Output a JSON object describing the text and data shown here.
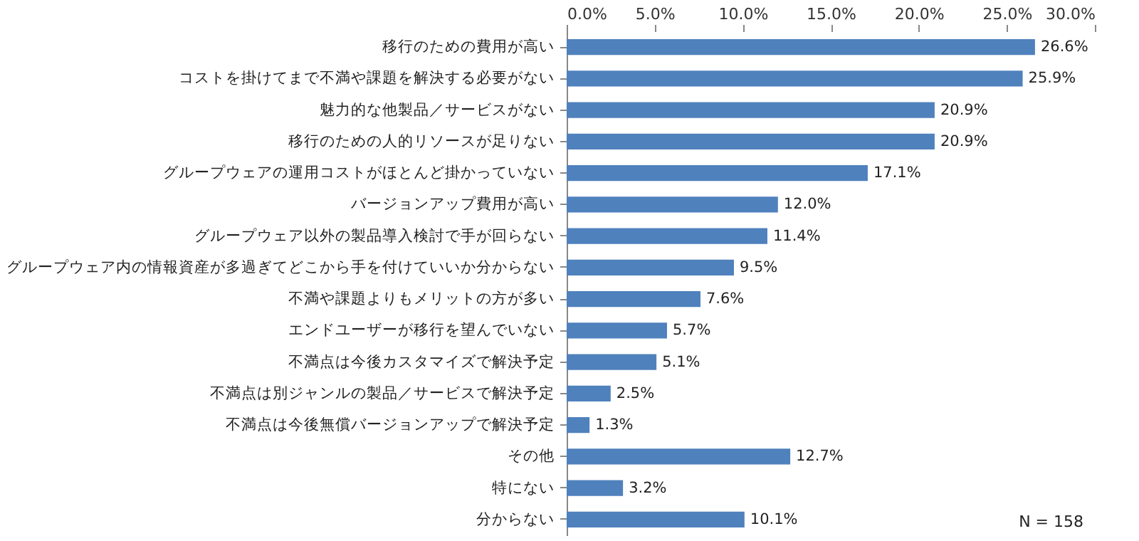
{
  "chart_data": {
    "type": "bar",
    "orientation": "horizontal",
    "categories": [
      "移行のための費用が高い",
      "コストを掛けてまで不満や課題を解決する必要がない",
      "魅力的な他製品／サービスがない",
      "移行のための人的リソースが足りない",
      "グループウェアの運用コストがほとんど掛かっていない",
      "バージョンアップ費用が高い",
      "グループウェア以外の製品導入検討で手が回らない",
      "グループウェア内の情報資産が多過ぎてどこから手を付けていいか分からない",
      "不満や課題よりもメリットの方が多い",
      "エンドユーザーが移行を望んでいない",
      "不満点は今後カスタマイズで解決予定",
      "不満点は別ジャンルの製品／サービスで解決予定",
      "不満点は今後無償バージョンアップで解決予定",
      "その他",
      "特にない",
      "分からない"
    ],
    "values": [
      26.6,
      25.9,
      20.9,
      20.9,
      17.1,
      12.0,
      11.4,
      9.5,
      7.6,
      5.7,
      5.1,
      2.5,
      1.3,
      12.7,
      3.2,
      10.1
    ],
    "value_labels": [
      "26.6%",
      "25.9%",
      "20.9%",
      "20.9%",
      "17.1%",
      "12.0%",
      "11.4%",
      "9.5%",
      "7.6%",
      "5.7%",
      "5.1%",
      "2.5%",
      "1.3%",
      "12.7%",
      "3.2%",
      "10.1%"
    ],
    "color": "#4f81bd",
    "xlim": [
      0,
      30
    ],
    "xticks": [
      {
        "value": 0,
        "label": "0.0%"
      },
      {
        "value": 5,
        "label": "5.0%"
      },
      {
        "value": 10,
        "label": "10.0%"
      },
      {
        "value": 15,
        "label": "15.0%"
      },
      {
        "value": 20,
        "label": "20.0%"
      },
      {
        "value": 25,
        "label": "25.0%"
      },
      {
        "value": 30,
        "label": "30.0%"
      }
    ],
    "grid": false,
    "annotations": [
      "N = 158"
    ]
  }
}
